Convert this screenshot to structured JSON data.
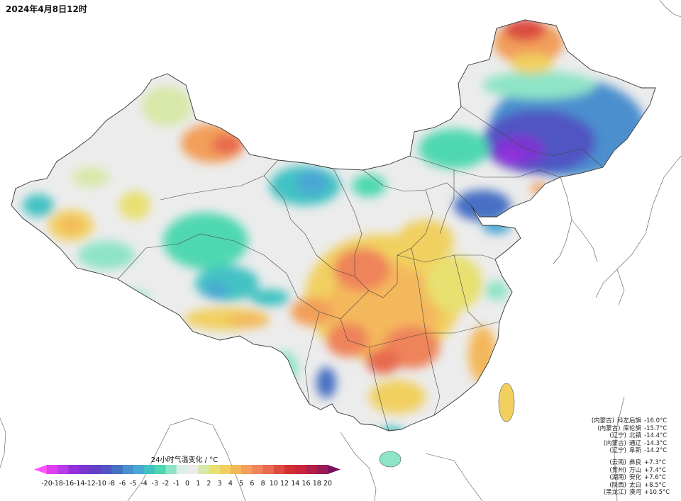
{
  "title": "2024年4月8日12时",
  "legend": {
    "title": "24小时气温变化 / °C",
    "ticks": [
      "-20",
      "-18",
      "-16",
      "-14",
      "-12",
      "-10",
      "-8",
      "-6",
      "-5",
      "-4",
      "-3",
      "-2",
      "-1",
      "0",
      "1",
      "2",
      "3",
      "4",
      "5",
      "6",
      "8",
      "10",
      "12",
      "14",
      "16",
      "18",
      "20"
    ],
    "colors": [
      "#e03ef0",
      "#b83ae8",
      "#9330dd",
      "#7a35d0",
      "#6440c8",
      "#4f55c2",
      "#4670c4",
      "#4c8fcf",
      "#4aa7d4",
      "#43c2c3",
      "#4fd8b0",
      "#8ee4c6",
      "#dcefe8",
      "#ececec",
      "#d8e8a8",
      "#e8e070",
      "#f1d060",
      "#f4b85c",
      "#f29f5a",
      "#ef835a",
      "#e86a50",
      "#dc4c40",
      "#d42f35",
      "#c9263e",
      "#b41f4a",
      "#9a1a56"
    ],
    "under_color": "#ff55ff",
    "over_color": "#7a1060"
  },
  "stations_cold": [
    {
      "province": "(内蒙古)",
      "name": "科左后旗",
      "value": "-16.0°C"
    },
    {
      "province": "(内蒙古)",
      "name": "库伦旗",
      "value": "-15.7°C"
    },
    {
      "province": "(辽宁)",
      "name": "北镇",
      "value": "-14.4°C"
    },
    {
      "province": "(内蒙古)",
      "name": "通辽",
      "value": "-14.3°C"
    },
    {
      "province": "(辽宁)",
      "name": "阜新",
      "value": "-14.2°C"
    }
  ],
  "stations_warm": [
    {
      "province": "(云南)",
      "name": "彝良",
      "value": "+7.3°C"
    },
    {
      "province": "(贵州)",
      "name": "万山",
      "value": "+7.4°C"
    },
    {
      "province": "(湖南)",
      "name": "安化",
      "value": "+7.6°C"
    },
    {
      "province": "(陕西)",
      "name": "太白",
      "value": "+8.5°C"
    },
    {
      "province": "(黑龙江)",
      "name": "漠河",
      "value": "+10.5°C"
    }
  ]
}
